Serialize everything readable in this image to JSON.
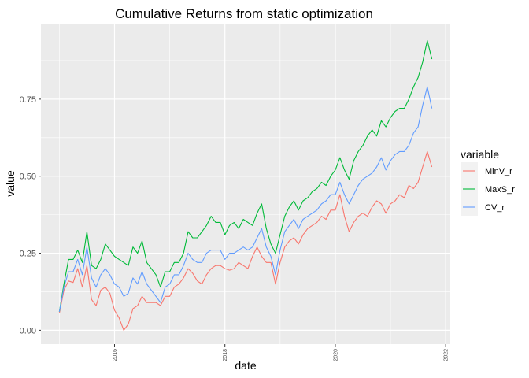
{
  "chart_data": {
    "type": "line",
    "title": "Cumulative Returns from static optimization",
    "xlabel": "date",
    "ylabel": "value",
    "x_axis": {
      "kind": "date",
      "range": [
        "2014-09-01",
        "2022-02-01"
      ],
      "ticks": [
        "2016",
        "2018",
        "2020",
        "2022"
      ]
    },
    "y_axis": {
      "range": [
        -0.045,
        0.995
      ],
      "ticks": [
        "0.00",
        "0.25",
        "0.50",
        "0.75"
      ]
    },
    "grid": true,
    "legend": {
      "title": "variable",
      "placement": "right"
    },
    "x": [
      "2015-01",
      "2015-02",
      "2015-03",
      "2015-04",
      "2015-05",
      "2015-06",
      "2015-07",
      "2015-08",
      "2015-09",
      "2015-10",
      "2015-11",
      "2015-12",
      "2016-01",
      "2016-02",
      "2016-03",
      "2016-04",
      "2016-05",
      "2016-06",
      "2016-07",
      "2016-08",
      "2016-09",
      "2016-10",
      "2016-11",
      "2016-12",
      "2017-01",
      "2017-02",
      "2017-03",
      "2017-04",
      "2017-05",
      "2017-06",
      "2017-07",
      "2017-08",
      "2017-09",
      "2017-10",
      "2017-11",
      "2017-12",
      "2018-01",
      "2018-02",
      "2018-03",
      "2018-04",
      "2018-05",
      "2018-06",
      "2018-07",
      "2018-08",
      "2018-09",
      "2018-10",
      "2018-11",
      "2018-12",
      "2019-01",
      "2019-02",
      "2019-03",
      "2019-04",
      "2019-05",
      "2019-06",
      "2019-07",
      "2019-08",
      "2019-09",
      "2019-10",
      "2019-11",
      "2019-12",
      "2020-01",
      "2020-02",
      "2020-03",
      "2020-04",
      "2020-05",
      "2020-06",
      "2020-07",
      "2020-08",
      "2020-09",
      "2020-10",
      "2020-11",
      "2020-12",
      "2021-01",
      "2021-02",
      "2021-03",
      "2021-04",
      "2021-05",
      "2021-06",
      "2021-07",
      "2021-08",
      "2021-09",
      "2021-10"
    ],
    "series": [
      {
        "name": "MinV_r",
        "color": "#F8766D",
        "values": [
          0.055,
          0.13,
          0.16,
          0.155,
          0.2,
          0.14,
          0.21,
          0.1,
          0.08,
          0.13,
          0.14,
          0.12,
          0.065,
          0.04,
          0.0,
          0.02,
          0.07,
          0.08,
          0.11,
          0.09,
          0.09,
          0.09,
          0.08,
          0.11,
          0.11,
          0.14,
          0.15,
          0.17,
          0.2,
          0.185,
          0.16,
          0.15,
          0.18,
          0.2,
          0.21,
          0.21,
          0.2,
          0.195,
          0.2,
          0.22,
          0.21,
          0.2,
          0.24,
          0.27,
          0.24,
          0.22,
          0.22,
          0.15,
          0.22,
          0.27,
          0.29,
          0.3,
          0.28,
          0.31,
          0.33,
          0.34,
          0.35,
          0.37,
          0.36,
          0.39,
          0.39,
          0.44,
          0.37,
          0.32,
          0.35,
          0.37,
          0.38,
          0.37,
          0.4,
          0.42,
          0.41,
          0.38,
          0.41,
          0.42,
          0.44,
          0.43,
          0.47,
          0.46,
          0.48,
          0.53,
          0.58,
          0.53
        ]
      },
      {
        "name": "MaxS_r",
        "color": "#00BA38",
        "values": [
          0.06,
          0.15,
          0.23,
          0.23,
          0.26,
          0.22,
          0.32,
          0.21,
          0.2,
          0.23,
          0.28,
          0.26,
          0.24,
          0.23,
          0.22,
          0.21,
          0.27,
          0.25,
          0.29,
          0.22,
          0.2,
          0.18,
          0.14,
          0.19,
          0.19,
          0.22,
          0.22,
          0.25,
          0.32,
          0.3,
          0.3,
          0.32,
          0.34,
          0.37,
          0.35,
          0.35,
          0.31,
          0.34,
          0.35,
          0.33,
          0.36,
          0.35,
          0.34,
          0.38,
          0.41,
          0.33,
          0.28,
          0.25,
          0.31,
          0.37,
          0.4,
          0.42,
          0.39,
          0.42,
          0.43,
          0.45,
          0.46,
          0.48,
          0.47,
          0.5,
          0.52,
          0.56,
          0.52,
          0.49,
          0.55,
          0.58,
          0.6,
          0.63,
          0.65,
          0.63,
          0.68,
          0.66,
          0.69,
          0.71,
          0.72,
          0.72,
          0.75,
          0.79,
          0.82,
          0.87,
          0.94,
          0.88
        ]
      },
      {
        "name": "CV_r",
        "color": "#619CFF",
        "values": [
          0.06,
          0.14,
          0.19,
          0.19,
          0.23,
          0.18,
          0.27,
          0.17,
          0.14,
          0.18,
          0.2,
          0.18,
          0.15,
          0.14,
          0.11,
          0.12,
          0.17,
          0.15,
          0.19,
          0.15,
          0.13,
          0.11,
          0.09,
          0.14,
          0.15,
          0.18,
          0.18,
          0.21,
          0.25,
          0.23,
          0.22,
          0.22,
          0.25,
          0.26,
          0.26,
          0.26,
          0.23,
          0.25,
          0.25,
          0.26,
          0.27,
          0.26,
          0.27,
          0.3,
          0.33,
          0.27,
          0.24,
          0.18,
          0.26,
          0.32,
          0.34,
          0.36,
          0.33,
          0.36,
          0.37,
          0.38,
          0.39,
          0.41,
          0.42,
          0.44,
          0.44,
          0.48,
          0.44,
          0.41,
          0.44,
          0.47,
          0.49,
          0.5,
          0.51,
          0.53,
          0.56,
          0.52,
          0.55,
          0.57,
          0.58,
          0.58,
          0.6,
          0.64,
          0.66,
          0.73,
          0.79,
          0.72
        ]
      }
    ]
  }
}
